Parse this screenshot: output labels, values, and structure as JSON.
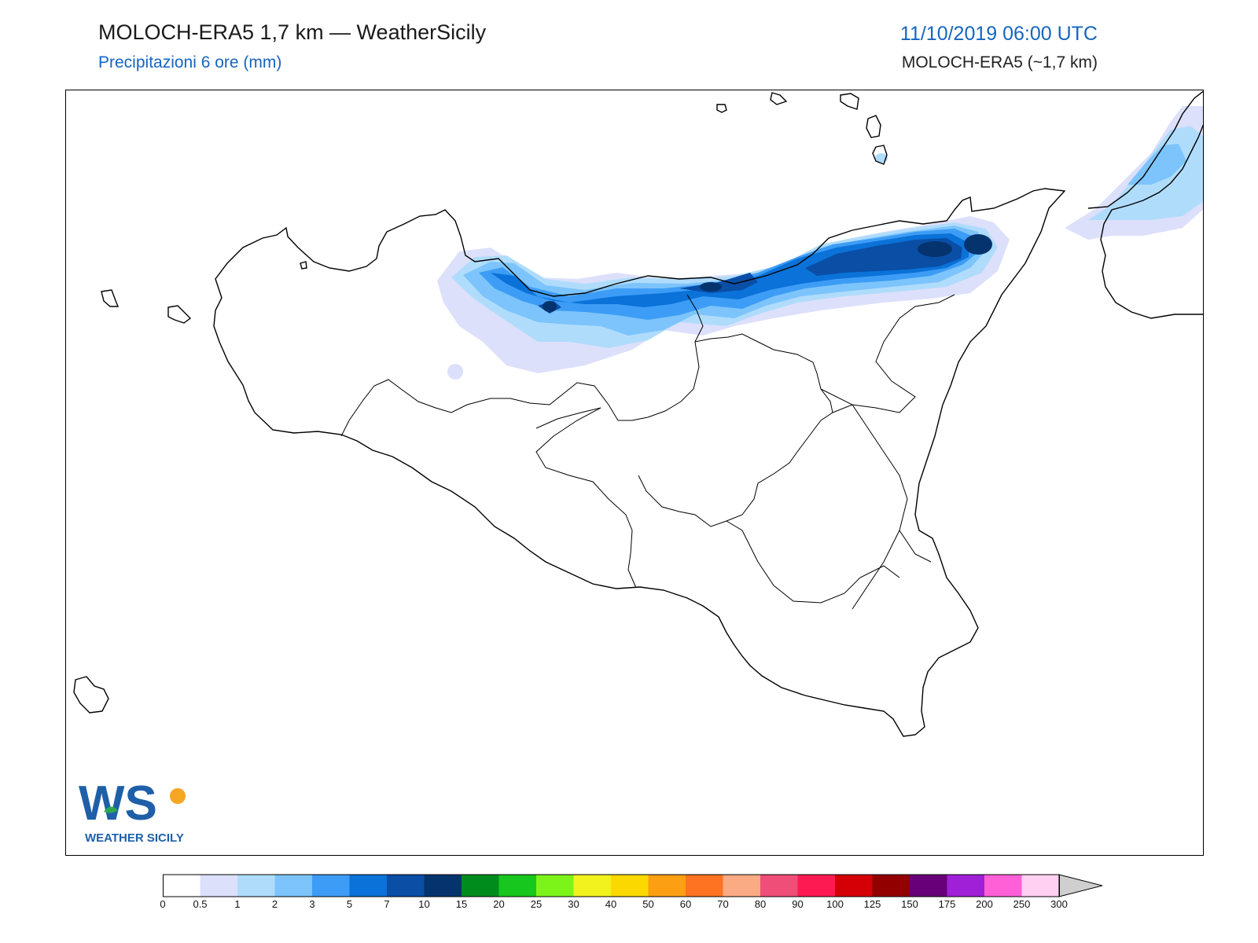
{
  "header": {
    "title": "MOLOCH-ERA5 1,7 km — WeatherSicily",
    "subtitle": "Precipitazioni 6 ore (mm)",
    "datetime": "11/10/2019 06:00 UTC",
    "model": "MOLOCH-ERA5 (~1,7 km)"
  },
  "logo": {
    "letters": "WS",
    "text": "WEATHER SICILY"
  },
  "colorbar": {
    "ticks": [
      "0",
      "0.5",
      "1",
      "2",
      "3",
      "5",
      "7",
      "10",
      "15",
      "20",
      "25",
      "30",
      "40",
      "50",
      "60",
      "70",
      "80",
      "90",
      "100",
      "125",
      "150",
      "175",
      "200",
      "250",
      "300"
    ],
    "colors": [
      "#ffffff",
      "#dde0fb",
      "#b0dcfc",
      "#7cc4fb",
      "#3d9cf5",
      "#0a72d8",
      "#0a4ea6",
      "#05336e",
      "#008c1c",
      "#17c71d",
      "#7cf41a",
      "#f2f21e",
      "#fbd900",
      "#fd9f12",
      "#fd7322",
      "#fbab84",
      "#ef4e78",
      "#fd1a52",
      "#d40005",
      "#930000",
      "#670079",
      "#a020d8",
      "#ff60d8",
      "#ffd0f2"
    ],
    "extend_color": "#cfcfcf"
  },
  "map": {
    "region": "Sicily",
    "colors": {
      "coast": "#000000",
      "light": "#dde0fb",
      "l1": "#b0dcfc",
      "l2": "#7cc4fb",
      "l3": "#3d9cf5",
      "l5": "#0a72d8",
      "l7": "#0a4ea6",
      "l10": "#05336e"
    }
  }
}
